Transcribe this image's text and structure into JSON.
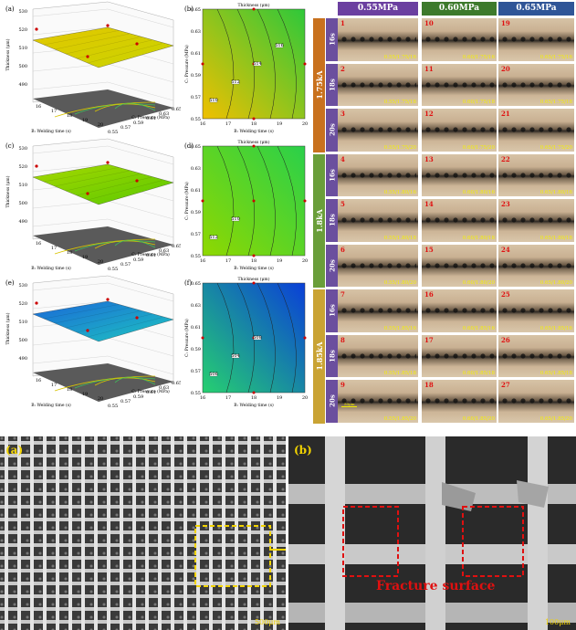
{
  "surface_panels": [
    {
      "label": "(a)",
      "zlabel": "Thickness (μm)",
      "xlabel": "B: Welding time (s)",
      "ylabel": "C: Pressure (MPa)",
      "zticks": [
        "530",
        "520",
        "510",
        "500",
        "490"
      ],
      "xticks": [
        "16",
        "17",
        "18",
        "19",
        "20"
      ],
      "yticks": [
        "0.55",
        "0.57",
        "0.59",
        "0.61",
        "0.63",
        "0.65"
      ],
      "colors": [
        "#c8d400",
        "#e3c700"
      ]
    },
    {
      "label": "(c)",
      "zlabel": "Thickness (μm)",
      "xlabel": "B: Welding time (s)",
      "ylabel": "C: Pressure (MPa)",
      "zticks": [
        "530",
        "520",
        "510",
        "500",
        "490"
      ],
      "xticks": [
        "16",
        "17",
        "18",
        "19",
        "20"
      ],
      "yticks": [
        "0.55",
        "0.57",
        "0.59",
        "0.61",
        "0.63",
        "0.65"
      ],
      "colors": [
        "#58c800",
        "#a7d800"
      ]
    },
    {
      "label": "(e)",
      "zlabel": "Thickness (μm)",
      "xlabel": "B: Welding time (s)",
      "ylabel": "C: Pressure (MPa)",
      "zticks": [
        "530",
        "520",
        "510",
        "500",
        "490"
      ],
      "xticks": [
        "16",
        "17",
        "18",
        "19",
        "20"
      ],
      "yticks": [
        "0.55",
        "0.57",
        "0.59",
        "0.61",
        "0.63",
        "0.65"
      ],
      "colors": [
        "#1ec8c0",
        "#1a66d8"
      ]
    }
  ],
  "contour_panels": [
    {
      "label": "(b)",
      "title": "Thickness (μm)",
      "xlabel": "B: Welding time (s)",
      "ylabel": "C: Pressure (MPa)",
      "xticks": [
        "16",
        "17",
        "18",
        "19",
        "20"
      ],
      "yticks": [
        "0.65",
        "0.63",
        "0.61",
        "0.59",
        "0.57",
        "0.55"
      ],
      "colors": [
        "#2ec83a",
        "#f0c000"
      ],
      "contour_labels": [
        "510",
        "512",
        "514",
        "516"
      ]
    },
    {
      "label": "(d)",
      "title": "Thickness (μm)",
      "xlabel": "B: Welding time (s)",
      "ylabel": "C: Pressure (MPa)",
      "xticks": [
        "16",
        "17",
        "18",
        "19",
        "20"
      ],
      "yticks": [
        "0.65",
        "0.63",
        "0.61",
        "0.59",
        "0.57",
        "0.55"
      ],
      "colors": [
        "#2ad04a",
        "#8fd800"
      ],
      "contour_labels": [
        "512",
        "510"
      ]
    },
    {
      "label": "(f)",
      "title": "Thickness (μm)",
      "xlabel": "B: Welding time (s)",
      "ylabel": "C: Pressure (MPa)",
      "xticks": [
        "16",
        "17",
        "18",
        "19",
        "20"
      ],
      "yticks": [
        "0.65",
        "0.63",
        "0.61",
        "0.59",
        "0.57",
        "0.55"
      ],
      "colors": [
        "#0a3fd8",
        "#26d070"
      ],
      "contour_labels": [
        "506",
        "504",
        "508"
      ]
    }
  ],
  "grid": {
    "pressures": [
      "0.55MPa",
      "0.60MPa",
      "0.65MPa"
    ],
    "header_colors": [
      "#6b3fa0",
      "#3d7a2c",
      "#2f5597"
    ],
    "currents": [
      "1.75kA",
      "1.8kA",
      "1.85kA"
    ],
    "times": [
      "16s",
      "18s",
      "20s"
    ],
    "cells": [
      [
        "0.55/1.75/16",
        "0.60/1.75/16",
        "0.65/1.75/16"
      ],
      [
        "0.55/1.75/18",
        "0.60/1.75/18",
        "0.65/1.75/18"
      ],
      [
        "0.55/1.75/20",
        "0.60/1.75/20",
        "0.65/1.75/20"
      ],
      [
        "0.55/1.80/16",
        "0.60/1.80/16",
        "0.65/1.80/16"
      ],
      [
        "0.55/1.80/18",
        "0.60/1.80/18",
        "0.65/1.80/18"
      ],
      [
        "0.55/1.80/20",
        "0.60/1.80/20",
        "0.65/1.80/20"
      ],
      [
        "0.55/1.85/16",
        "0.60/1.85/16",
        "0.65/1.85/16"
      ],
      [
        "0.55/1.85/18",
        "0.60/1.85/18",
        "0.65/1.85/18"
      ],
      [
        "0.55/1.85/20",
        "0.60/1.85/20",
        "0.65/1.85/20"
      ]
    ],
    "numbers": [
      [
        "1",
        "10",
        "19"
      ],
      [
        "2",
        "11",
        "20"
      ],
      [
        "3",
        "12",
        "21"
      ],
      [
        "4",
        "13",
        "22"
      ],
      [
        "5",
        "14",
        "23"
      ],
      [
        "6",
        "15",
        "24"
      ],
      [
        "7",
        "16",
        "25"
      ],
      [
        "8",
        "17",
        "26"
      ],
      [
        "9",
        "18",
        "27"
      ]
    ],
    "scalebar": "50μm"
  },
  "sem": {
    "a_label": "(a)",
    "b_label": "(b)",
    "a_scale": "500μm",
    "b_scale": "100μm",
    "fracture": "Fracture surface"
  }
}
